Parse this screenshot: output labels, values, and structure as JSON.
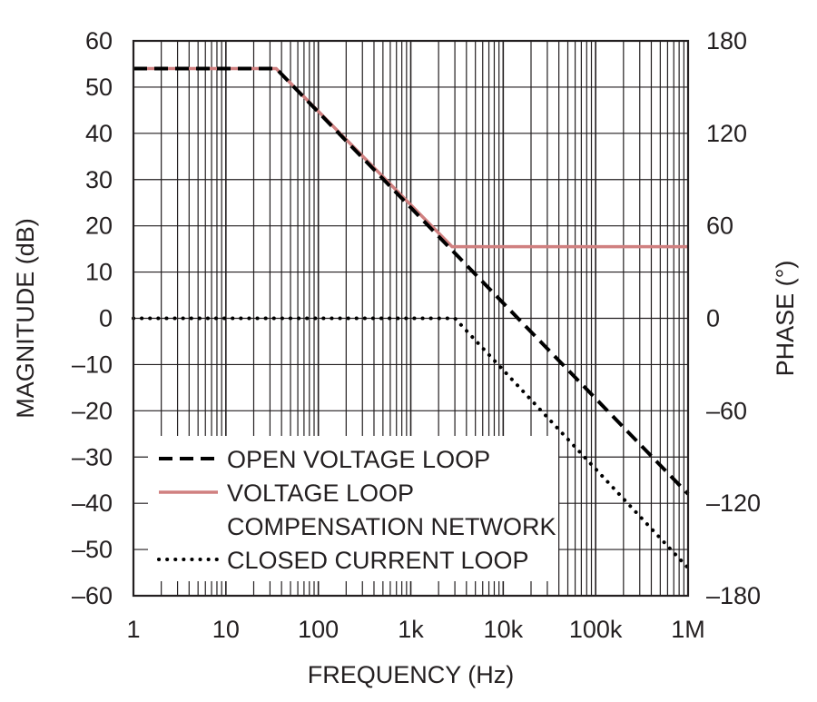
{
  "chart_data": {
    "type": "line",
    "xlabel": "FREQUENCY (Hz)",
    "ylabel": "MAGNITUDE (dB)",
    "y2label": "PHASE (°)",
    "xscale": "log",
    "xlim": [
      1,
      1000000
    ],
    "ylim": [
      -60,
      60
    ],
    "y2lim": [
      -180,
      180
    ],
    "xticks": [
      1,
      10,
      100,
      1000,
      10000,
      100000,
      1000000
    ],
    "xtick_labels": [
      "1",
      "10",
      "100",
      "1k",
      "10k",
      "100k",
      "1M"
    ],
    "yticks": [
      60,
      50,
      40,
      30,
      20,
      10,
      0,
      -10,
      -20,
      -30,
      -40,
      -50,
      -60
    ],
    "ytick_labels": [
      "60",
      "50",
      "40",
      "30",
      "20",
      "10",
      "0",
      "–10",
      "–20",
      "–30",
      "–40",
      "–50",
      "–60"
    ],
    "y2ticks": [
      180,
      120,
      60,
      0,
      -60,
      -120,
      -180
    ],
    "y2tick_labels": [
      "180",
      "120",
      "60",
      "0",
      "–60",
      "–120",
      "–180"
    ],
    "grid": true,
    "legend_position": "bottom-left",
    "series": [
      {
        "name": "OPEN VOLTAGE LOOP",
        "style": "dashed",
        "color": "#000000",
        "x": [
          1,
          35,
          1000000
        ],
        "y": [
          54,
          54,
          -38
        ]
      },
      {
        "name": "VOLTAGE LOOP COMPENSATION NETWORK",
        "style": "solid",
        "color": "#d08080",
        "x": [
          1,
          35,
          2800,
          1000000
        ],
        "y": [
          54,
          54,
          15.5,
          15.5
        ]
      },
      {
        "name": "CLOSED CURRENT LOOP",
        "style": "dotted",
        "color": "#000000",
        "x": [
          1,
          3000,
          1000000
        ],
        "y": [
          0,
          0,
          -54
        ]
      }
    ],
    "legend": [
      {
        "lines": [
          "OPEN VOLTAGE LOOP"
        ]
      },
      {
        "lines": [
          "VOLTAGE LOOP",
          "COMPENSATION NETWORK"
        ]
      },
      {
        "lines": [
          "CLOSED CURRENT LOOP"
        ]
      }
    ]
  }
}
